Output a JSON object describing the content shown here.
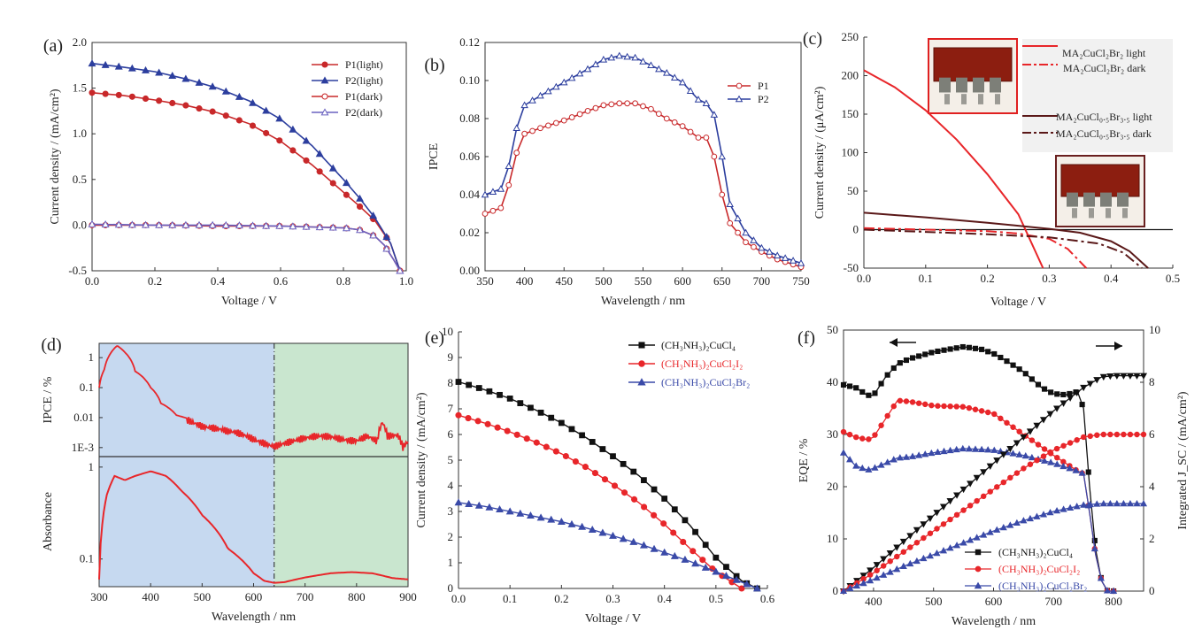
{
  "figure": {
    "colors": {
      "red": "#d42b22",
      "blue": "#3a4aa8",
      "black": "#111111",
      "brown": "#5a1818",
      "axis": "#333333"
    }
  },
  "chart_data": [
    {
      "panel": "(a)",
      "type": "line",
      "xlabel": "Voltage / V",
      "ylabel": "Current density / (mA/cm²)",
      "xlim": [
        0,
        1.0
      ],
      "ylim": [
        -0.5,
        2.0
      ],
      "xticks": [
        "0.0",
        "0.2",
        "0.4",
        "0.6",
        "0.8",
        "1.0"
      ],
      "yticks": [
        "-0.5",
        "0.0",
        "0.5",
        "1.0",
        "1.5",
        "2.0"
      ],
      "legend_position": "top-right",
      "series": [
        {
          "name": "P1(light)",
          "color": "#c8282a",
          "marker": "filled-circle",
          "x": [
            0,
            0.1,
            0.2,
            0.3,
            0.4,
            0.5,
            0.6,
            0.7,
            0.8,
            0.85,
            0.9,
            0.95,
            0.98
          ],
          "y": [
            1.45,
            1.42,
            1.37,
            1.31,
            1.23,
            1.11,
            0.92,
            0.66,
            0.36,
            0.21,
            0.05,
            -0.2,
            -0.5
          ]
        },
        {
          "name": "P2(light)",
          "color": "#2c3e9e",
          "marker": "filled-triangle",
          "x": [
            0,
            0.1,
            0.2,
            0.3,
            0.4,
            0.5,
            0.6,
            0.7,
            0.8,
            0.85,
            0.9,
            0.95,
            0.98
          ],
          "y": [
            1.77,
            1.73,
            1.68,
            1.6,
            1.5,
            1.36,
            1.16,
            0.87,
            0.5,
            0.3,
            0.08,
            -0.2,
            -0.5
          ]
        },
        {
          "name": "P1(dark)",
          "color": "#c8282a",
          "marker": "open-circle",
          "x": [
            0,
            0.2,
            0.4,
            0.6,
            0.7,
            0.8,
            0.85,
            0.9,
            0.93,
            0.96,
            0.98
          ],
          "y": [
            0,
            0,
            -0.01,
            -0.01,
            -0.02,
            -0.03,
            -0.05,
            -0.12,
            -0.22,
            -0.38,
            -0.5
          ]
        },
        {
          "name": "P2(dark)",
          "color": "#6a62c0",
          "marker": "open-triangle",
          "x": [
            0,
            0.2,
            0.4,
            0.6,
            0.7,
            0.8,
            0.85,
            0.9,
            0.93,
            0.96,
            0.98
          ],
          "y": [
            0.01,
            0,
            0,
            -0.01,
            -0.02,
            -0.03,
            -0.05,
            -0.12,
            -0.22,
            -0.38,
            -0.5
          ]
        }
      ]
    },
    {
      "panel": "(b)",
      "type": "line",
      "xlabel": "Wavelength / nm",
      "ylabel": "IPCE",
      "xlim": [
        350,
        750
      ],
      "ylim": [
        0,
        0.12
      ],
      "xticks": [
        "350",
        "400",
        "450",
        "500",
        "550",
        "600",
        "650",
        "700",
        "750"
      ],
      "yticks": [
        "0.00",
        "0.02",
        "0.04",
        "0.06",
        "0.08",
        "0.10",
        "0.12"
      ],
      "legend_position": "top-right",
      "series": [
        {
          "name": "P1",
          "color": "#c8282a",
          "marker": "open-circle",
          "x": [
            350,
            370,
            380,
            390,
            400,
            420,
            450,
            480,
            500,
            520,
            540,
            560,
            580,
            600,
            620,
            630,
            640,
            650,
            660,
            680,
            700,
            720,
            750
          ],
          "y": [
            0.03,
            0.033,
            0.045,
            0.062,
            0.072,
            0.075,
            0.079,
            0.084,
            0.087,
            0.088,
            0.088,
            0.085,
            0.08,
            0.076,
            0.07,
            0.07,
            0.06,
            0.04,
            0.025,
            0.015,
            0.01,
            0.006,
            0.002
          ]
        },
        {
          "name": "P2",
          "color": "#2c3e9e",
          "marker": "open-triangle",
          "x": [
            350,
            370,
            380,
            390,
            400,
            420,
            450,
            480,
            500,
            520,
            540,
            560,
            580,
            600,
            620,
            630,
            640,
            650,
            660,
            680,
            700,
            720,
            750
          ],
          "y": [
            0.04,
            0.043,
            0.055,
            0.075,
            0.087,
            0.092,
            0.099,
            0.106,
            0.111,
            0.113,
            0.112,
            0.108,
            0.104,
            0.099,
            0.09,
            0.088,
            0.082,
            0.06,
            0.035,
            0.02,
            0.012,
            0.008,
            0.004
          ]
        }
      ]
    },
    {
      "panel": "(c)",
      "type": "line",
      "xlabel": "Voltage / V",
      "ylabel": "Current density / (μA/cm²)",
      "xlim": [
        0,
        0.5
      ],
      "ylim": [
        -50,
        250
      ],
      "xticks": [
        "0.0",
        "0.1",
        "0.2",
        "0.3",
        "0.4",
        "0.5"
      ],
      "yticks": [
        "-50",
        "0",
        "50",
        "100",
        "150",
        "200",
        "250"
      ],
      "legend_position": "top-right",
      "images": [
        "MA2CuCl2Br2 device photo",
        "MA2CuCl0.5Br3.5 device photo"
      ],
      "series": [
        {
          "name": "MA₂CuCl₂Br₂ light",
          "color": "#e8262a",
          "style": "solid",
          "x": [
            0,
            0.05,
            0.1,
            0.15,
            0.2,
            0.25,
            0.29
          ],
          "y": [
            207,
            185,
            155,
            117,
            72,
            20,
            -50
          ]
        },
        {
          "name": "MA₂CuCl₂Br₂ dark",
          "color": "#e8262a",
          "style": "dash-dot",
          "x": [
            0,
            0.1,
            0.2,
            0.25,
            0.3,
            0.33,
            0.36
          ],
          "y": [
            2,
            0,
            -2,
            -5,
            -12,
            -25,
            -50
          ]
        },
        {
          "name": "MA₂CuCl₀.₅Br₃.₅ light",
          "color": "#5a1818",
          "style": "solid",
          "x": [
            0,
            0.1,
            0.2,
            0.3,
            0.35,
            0.4,
            0.43,
            0.46
          ],
          "y": [
            22,
            16,
            9,
            1,
            -4,
            -15,
            -28,
            -50
          ]
        },
        {
          "name": "MA₂CuCl₀.₅Br₃.₅ dark",
          "color": "#5a1818",
          "style": "dash-dot",
          "x": [
            0,
            0.1,
            0.2,
            0.3,
            0.38,
            0.42,
            0.45
          ],
          "y": [
            0,
            -3,
            -6,
            -10,
            -18,
            -30,
            -50
          ]
        }
      ]
    },
    {
      "panel": "(d)",
      "type": "line",
      "xlabel": "Wavelength / nm",
      "ylabel_top": "IPCE / %",
      "ylabel_bottom": "Absorbance",
      "xlim": [
        300,
        900
      ],
      "xticks": [
        "300",
        "400",
        "500",
        "600",
        "700",
        "800",
        "900"
      ],
      "top_yscale": "log",
      "top_yticks": [
        "1",
        "0.1",
        "0.01",
        "1E-3"
      ],
      "top_ylim": [
        0.0005,
        3
      ],
      "bottom_yscale": "log",
      "bottom_yticks": [
        "1",
        "0.1"
      ],
      "bottom_ylim": [
        0.05,
        1.3
      ],
      "divider_wavelength": 640,
      "shaded_regions": [
        {
          "from": 300,
          "to": 640,
          "color": "#c6d9f0"
        },
        {
          "from": 640,
          "to": 900,
          "color": "#c9e6cf"
        }
      ],
      "series": [
        {
          "name": "IPCE",
          "color": "#e8262a",
          "x": [
            300,
            310,
            320,
            335,
            350,
            370,
            390,
            400,
            420,
            450,
            500,
            550,
            600,
            640,
            660,
            700,
            750,
            800,
            820,
            840,
            850,
            860,
            880,
            890,
            900
          ],
          "y": [
            0.1,
            0.4,
            1.2,
            2.5,
            1.5,
            0.35,
            0.18,
            0.1,
            0.03,
            0.012,
            0.006,
            0.003,
            0.0018,
            0.0013,
            0.0016,
            0.0018,
            0.0022,
            0.002,
            0.0026,
            0.0015,
            0.006,
            0.002,
            0.0022,
            0.0009,
            0.0015
          ]
        },
        {
          "name": "Absorbance",
          "color": "#e8262a",
          "x": [
            300,
            315,
            330,
            350,
            370,
            400,
            430,
            460,
            500,
            550,
            600,
            620,
            640,
            660,
            700,
            750,
            790,
            830,
            870,
            900
          ],
          "y": [
            0.06,
            0.5,
            0.8,
            0.72,
            0.8,
            0.9,
            0.8,
            0.55,
            0.3,
            0.13,
            0.07,
            0.058,
            0.055,
            0.056,
            0.063,
            0.07,
            0.072,
            0.07,
            0.062,
            0.06
          ]
        }
      ]
    },
    {
      "panel": "(e)",
      "type": "line",
      "xlabel": "Voltage / V",
      "ylabel": "Current density / (mA/cm²)",
      "xlim": [
        0,
        0.6
      ],
      "ylim": [
        0,
        10
      ],
      "xticks": [
        "0.0",
        "0.1",
        "0.2",
        "0.3",
        "0.4",
        "0.5",
        "0.6"
      ],
      "yticks": [
        "0",
        "1",
        "2",
        "3",
        "4",
        "5",
        "6",
        "7",
        "8",
        "9",
        "10"
      ],
      "legend_position": "top-right",
      "series": [
        {
          "name": "(CH₃NH₃)₂CuCl₄",
          "color": "#111111",
          "marker": "square",
          "x": [
            0,
            0.05,
            0.1,
            0.15,
            0.2,
            0.25,
            0.3,
            0.35,
            0.4,
            0.45,
            0.5,
            0.55,
            0.58
          ],
          "y": [
            8.05,
            7.75,
            7.4,
            6.95,
            6.45,
            5.85,
            5.15,
            4.4,
            3.5,
            2.45,
            1.2,
            0.3,
            0
          ]
        },
        {
          "name": "(CH₃NH₃)₂CuCl₂I₂",
          "color": "#e8262a",
          "marker": "circle",
          "x": [
            0,
            0.05,
            0.1,
            0.15,
            0.2,
            0.25,
            0.3,
            0.35,
            0.4,
            0.45,
            0.5,
            0.55
          ],
          "y": [
            6.75,
            6.45,
            6.1,
            5.7,
            5.25,
            4.7,
            4.05,
            3.35,
            2.5,
            1.55,
            0.65,
            0
          ]
        },
        {
          "name": "(CH₃NH₃)₂CuCl₂Br₂",
          "color": "#3a4aa8",
          "marker": "triangle",
          "x": [
            0,
            0.05,
            0.1,
            0.15,
            0.2,
            0.25,
            0.3,
            0.35,
            0.4,
            0.45,
            0.5,
            0.55,
            0.58
          ],
          "y": [
            3.35,
            3.2,
            3.0,
            2.8,
            2.6,
            2.35,
            2.05,
            1.75,
            1.4,
            1.05,
            0.65,
            0.25,
            0
          ]
        }
      ]
    },
    {
      "panel": "(f)",
      "type": "line",
      "xlabel": "Wavelength / nm",
      "ylabel": "EQE / %",
      "ylabel_right": "Integrated J_SC / (mA/cm²)",
      "xlim": [
        350,
        850
      ],
      "ylim": [
        0,
        50
      ],
      "ylim_right": [
        0,
        10
      ],
      "xticks": [
        "400",
        "500",
        "600",
        "700",
        "800"
      ],
      "yticks": [
        "0",
        "10",
        "20",
        "30",
        "40",
        "50"
      ],
      "yticks_right": [
        "0",
        "2",
        "4",
        "6",
        "8",
        "10"
      ],
      "legend_position": "bottom-left",
      "arrows": [
        "left axis",
        "right axis"
      ],
      "series": [
        {
          "name": "(CH₃NH₃)₂CuCl₄",
          "color": "#111111",
          "marker": "square",
          "axis": "left",
          "x": [
            350,
            370,
            390,
            400,
            420,
            440,
            460,
            500,
            550,
            580,
            600,
            620,
            650,
            680,
            700,
            720,
            740,
            750,
            760,
            770,
            780,
            790,
            800
          ],
          "y": [
            39.5,
            39,
            37.5,
            37.5,
            41,
            43.5,
            44.5,
            45.8,
            46.8,
            46.3,
            45.5,
            44.2,
            42,
            39,
            37.8,
            37.6,
            38.2,
            35,
            20,
            8,
            2,
            0,
            0
          ]
        },
        {
          "name": "(CH₃NH₃)₂CuCl₂I₂",
          "color": "#e8262a",
          "marker": "circle",
          "axis": "left",
          "x": [
            350,
            370,
            390,
            400,
            420,
            440,
            460,
            500,
            550,
            600,
            650,
            700,
            740,
            750,
            760,
            770,
            780,
            790,
            800
          ],
          "y": [
            30.5,
            29.5,
            29,
            29.5,
            33,
            36.5,
            36.3,
            35.5,
            35.3,
            34,
            30,
            26,
            23,
            22.5,
            15,
            7,
            2,
            0,
            0
          ]
        },
        {
          "name": "(CH₃NH₃)₂CuCl₂Br₂",
          "color": "#3a4aa8",
          "marker": "triangle",
          "axis": "left",
          "x": [
            350,
            370,
            390,
            400,
            420,
            440,
            460,
            500,
            550,
            600,
            650,
            700,
            740,
            750,
            760,
            770,
            780,
            790,
            800
          ],
          "y": [
            26.5,
            24,
            23.2,
            23.5,
            24.5,
            25.5,
            25.7,
            26.5,
            27.3,
            27,
            26,
            24.5,
            23,
            22.5,
            15,
            7,
            2,
            0,
            0
          ]
        },
        {
          "name": "Integrated JSC (CH₃NH₃)₂CuCl₄",
          "color": "#111111",
          "marker": "triangle-down",
          "axis": "right",
          "x": [
            350,
            400,
            450,
            500,
            550,
            600,
            650,
            700,
            750,
            780,
            800,
            850
          ],
          "y": [
            0,
            0.9,
            1.9,
            2.9,
            3.9,
            4.9,
            5.9,
            6.9,
            7.8,
            8.2,
            8.25,
            8.25
          ]
        },
        {
          "name": "Integrated JSC (CH₃NH₃)₂CuCl₂I₂",
          "color": "#e8262a",
          "marker": "circle",
          "axis": "right",
          "x": [
            350,
            400,
            450,
            500,
            550,
            600,
            650,
            700,
            750,
            780,
            800,
            850
          ],
          "y": [
            0,
            0.7,
            1.5,
            2.3,
            3.1,
            3.9,
            4.7,
            5.4,
            5.9,
            6.0,
            6.0,
            6.0
          ]
        },
        {
          "name": "Integrated JSC (CH₃NH₃)₂CuCl₂Br₂",
          "color": "#3a4aa8",
          "marker": "triangle",
          "axis": "right",
          "x": [
            350,
            400,
            450,
            500,
            550,
            600,
            650,
            700,
            750,
            780,
            800,
            850
          ],
          "y": [
            0,
            0.45,
            0.95,
            1.4,
            1.85,
            2.3,
            2.7,
            3.05,
            3.3,
            3.35,
            3.35,
            3.35
          ]
        }
      ]
    }
  ]
}
